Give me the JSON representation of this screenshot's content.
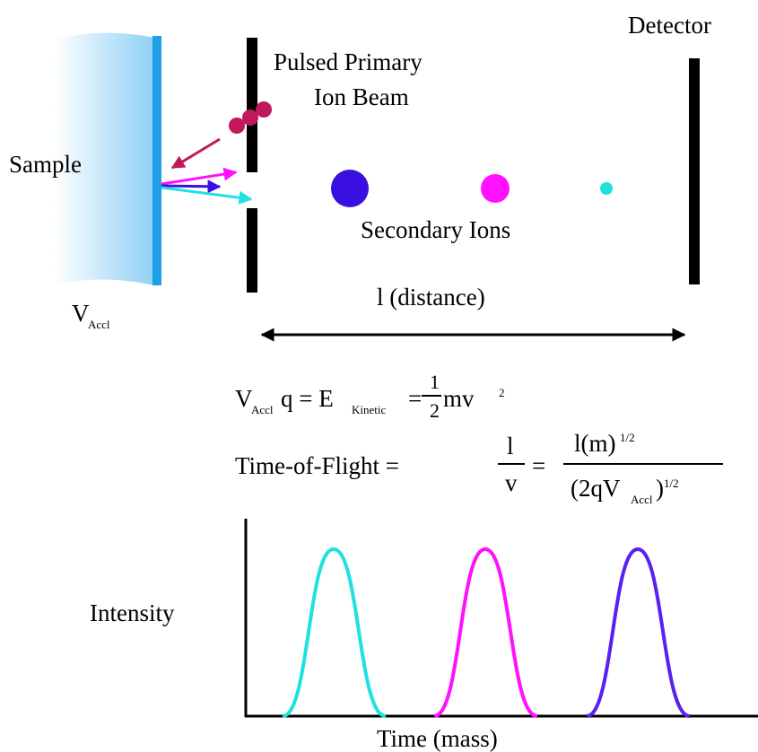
{
  "labels": {
    "detector": "Detector",
    "pulsed_beam": [
      "Pulsed Primary",
      "Ion Beam"
    ],
    "sample": "Sample",
    "v_accl": {
      "main": "V",
      "sub": "Accl"
    },
    "secondary_ions": "Secondary Ions",
    "distance": "l (distance)"
  },
  "equations": {
    "energy": {
      "v": "V",
      "v_sub": "Accl",
      "q_e": "q = E",
      "e_sub": "Kinetic",
      "eq": "=",
      "frac_num": "1",
      "frac_den": "2",
      "mv": "mv",
      "sup": "2"
    },
    "tof": {
      "lhs": "Time-of-Flight =",
      "frac1_num": "l",
      "frac1_den": "v",
      "eq": "=",
      "num": "l(m)",
      "num_sup": "1/2",
      "den": "(2qV",
      "den_sub": "Accl",
      "den_close": ")",
      "den_sup": "1/2"
    }
  },
  "plot": {
    "y_label": "Intensity",
    "x_label": "Time (mass)"
  }
}
